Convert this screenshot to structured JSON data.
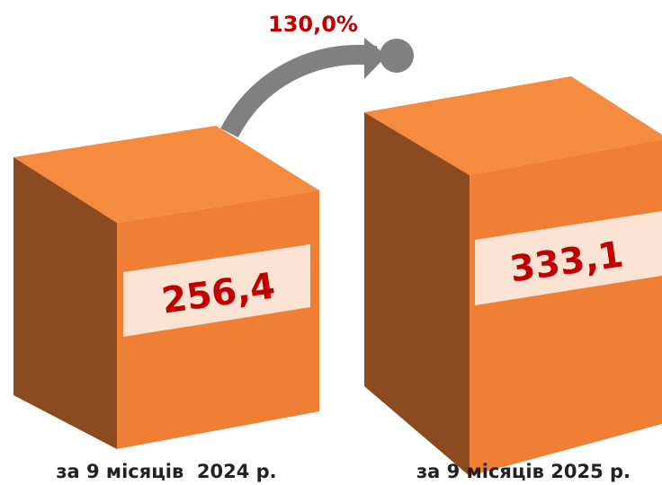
{
  "growth": "130,0%",
  "items": [
    {
      "value": "256,4",
      "label": "за 9 місяців  2024 р."
    },
    {
      "value": "333,1",
      "label": "за 9 місяців 2025 р."
    }
  ]
}
